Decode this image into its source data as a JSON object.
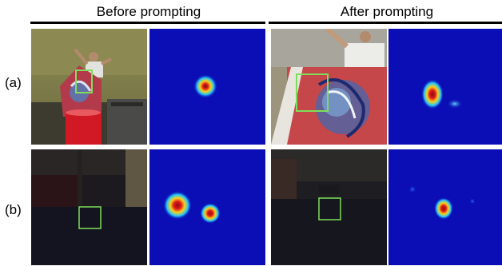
{
  "columns": [
    {
      "title": "Before prompting"
    },
    {
      "title": "After prompting"
    }
  ],
  "rows": [
    {
      "label": "(a)"
    },
    {
      "label": "(b)"
    }
  ],
  "colors": {
    "heatmap_background": "#0b0eb4",
    "heatmap_hot": "#e0141a",
    "heatmap_warm": "#f7d21a",
    "heatmap_mid": "#23c4ff",
    "box_outline": "#7ddf59"
  }
}
